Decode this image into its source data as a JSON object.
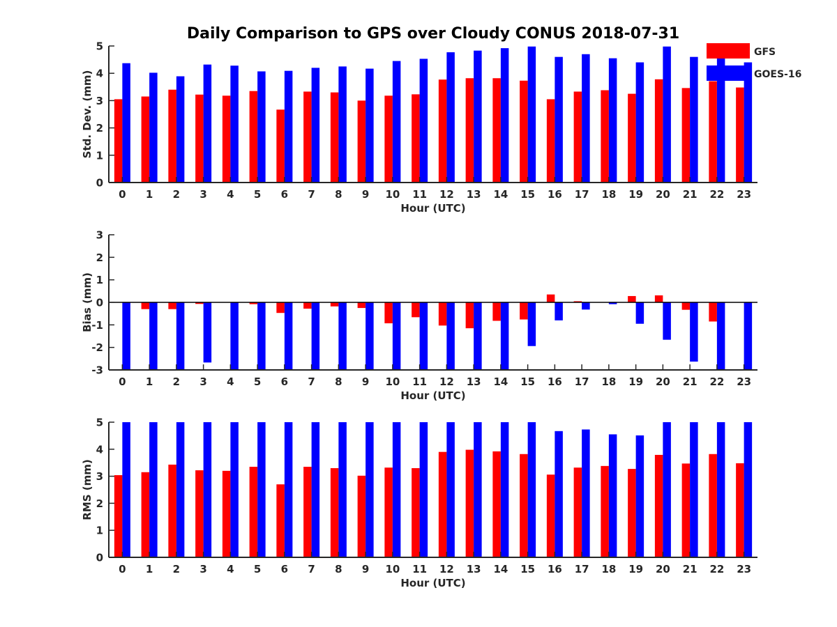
{
  "figure": {
    "title": "Daily Comparison to GPS over Cloudy CONUS 2018-07-31"
  },
  "legend": {
    "placement": "top-right",
    "items": [
      {
        "label": "GFS",
        "color": "#ff0000"
      },
      {
        "label": "GOES-16",
        "color": "#0000ff"
      }
    ]
  },
  "chart_data": [
    {
      "type": "bar",
      "title": "Daily Comparison to GPS over Cloudy CONUS 2018-07-31",
      "xlabel": "Hour (UTC)",
      "ylabel": "Std. Dev. (mm)",
      "ylim": [
        0,
        5
      ],
      "yticks": [
        0,
        1,
        2,
        3,
        4,
        5
      ],
      "categories": [
        "0",
        "1",
        "2",
        "3",
        "4",
        "5",
        "6",
        "7",
        "8",
        "9",
        "10",
        "11",
        "12",
        "13",
        "14",
        "15",
        "16",
        "17",
        "18",
        "19",
        "20",
        "21",
        "22",
        "23"
      ],
      "series": [
        {
          "name": "GFS",
          "color": "#ff0000",
          "values": [
            3.05,
            3.15,
            3.4,
            3.22,
            3.18,
            3.35,
            2.67,
            3.33,
            3.3,
            3.0,
            3.18,
            3.23,
            3.77,
            3.82,
            3.82,
            3.73,
            3.05,
            3.33,
            3.38,
            3.25,
            3.78,
            3.46,
            3.71,
            3.48
          ]
        },
        {
          "name": "GOES-16",
          "color": "#0000ff",
          "values": [
            4.37,
            4.02,
            3.89,
            4.32,
            4.28,
            4.07,
            4.09,
            4.2,
            4.25,
            4.17,
            4.45,
            4.53,
            4.77,
            4.83,
            4.92,
            4.98,
            4.6,
            4.7,
            4.55,
            4.4,
            4.98,
            4.6,
            5.0,
            4.4
          ]
        }
      ]
    },
    {
      "type": "bar",
      "title": "",
      "xlabel": "Hour (UTC)",
      "ylabel": "Bias (mm)",
      "ylim": [
        -3,
        3
      ],
      "yticks": [
        -3,
        -2,
        -1,
        0,
        1,
        2,
        3
      ],
      "categories": [
        "0",
        "1",
        "2",
        "3",
        "4",
        "5",
        "6",
        "7",
        "8",
        "9",
        "10",
        "11",
        "12",
        "13",
        "14",
        "15",
        "16",
        "17",
        "18",
        "19",
        "20",
        "21",
        "22",
        "23"
      ],
      "series": [
        {
          "name": "GFS",
          "color": "#ff0000",
          "values": [
            0.0,
            -0.3,
            -0.3,
            -0.07,
            0.0,
            -0.08,
            -0.47,
            -0.28,
            -0.18,
            -0.25,
            -0.93,
            -0.66,
            -1.03,
            -1.15,
            -0.82,
            -0.76,
            0.35,
            0.05,
            0.0,
            0.28,
            0.31,
            -0.33,
            -0.85,
            0.0
          ]
        },
        {
          "name": "GOES-16",
          "color": "#0000ff",
          "values": [
            -3.0,
            -3.0,
            -3.0,
            -2.67,
            -3.0,
            -3.0,
            -3.0,
            -3.0,
            -3.0,
            -3.0,
            -3.0,
            -3.0,
            -3.0,
            -3.0,
            -3.0,
            -1.94,
            -0.8,
            -0.32,
            -0.08,
            -0.95,
            -1.66,
            -2.63,
            -3.0,
            -3.0
          ]
        }
      ]
    },
    {
      "type": "bar",
      "title": "",
      "xlabel": "Hour (UTC)",
      "ylabel": "RMS (mm)",
      "ylim": [
        0,
        5
      ],
      "yticks": [
        0,
        1,
        2,
        3,
        4,
        5
      ],
      "categories": [
        "0",
        "1",
        "2",
        "3",
        "4",
        "5",
        "6",
        "7",
        "8",
        "9",
        "10",
        "11",
        "12",
        "13",
        "14",
        "15",
        "16",
        "17",
        "18",
        "19",
        "20",
        "21",
        "22",
        "23"
      ],
      "series": [
        {
          "name": "GFS",
          "color": "#ff0000",
          "values": [
            3.04,
            3.15,
            3.43,
            3.22,
            3.2,
            3.35,
            2.7,
            3.35,
            3.3,
            3.02,
            3.32,
            3.3,
            3.9,
            3.98,
            3.92,
            3.82,
            3.06,
            3.32,
            3.38,
            3.27,
            3.79,
            3.47,
            3.82,
            3.48
          ]
        },
        {
          "name": "GOES-16",
          "color": "#0000ff",
          "values": [
            5.0,
            5.0,
            5.0,
            5.0,
            5.0,
            5.0,
            5.0,
            5.0,
            5.0,
            5.0,
            5.0,
            5.0,
            5.0,
            5.0,
            5.0,
            5.0,
            4.67,
            4.73,
            4.55,
            4.51,
            5.0,
            5.0,
            5.0,
            5.0
          ]
        }
      ]
    }
  ]
}
